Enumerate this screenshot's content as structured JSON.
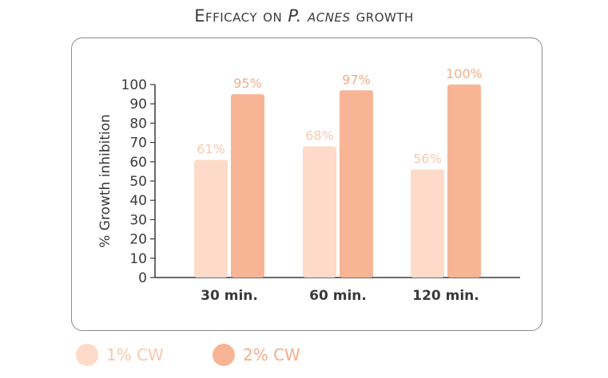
{
  "title": {
    "prefix": "Efficacy on ",
    "emphasis": "P. acnes",
    "suffix": " growth"
  },
  "colors": {
    "series1": "#fddbc8",
    "series2": "#f7b595",
    "label1": "#f9c8ad",
    "label2": "#f4ad8a",
    "axis": "#3a3a3a",
    "text": "#3a3a3a"
  },
  "chart_data": {
    "type": "bar",
    "title": "Efficacy on P. acnes growth",
    "xlabel": "",
    "ylabel": "% Growth inhibition",
    "ylim": [
      0,
      100
    ],
    "yticks": [
      0,
      10,
      20,
      30,
      40,
      50,
      60,
      70,
      80,
      90,
      100
    ],
    "categories": [
      "30 min.",
      "60 min.",
      "120 min."
    ],
    "series": [
      {
        "name": "1% CW",
        "values": [
          61,
          68,
          56
        ],
        "labels": [
          "61%",
          "68%",
          "56%"
        ]
      },
      {
        "name": "2% CW",
        "values": [
          95,
          97,
          100
        ],
        "labels": [
          "95%",
          "97%",
          "100%"
        ]
      }
    ],
    "grid": false,
    "legend": "bottom-left"
  }
}
